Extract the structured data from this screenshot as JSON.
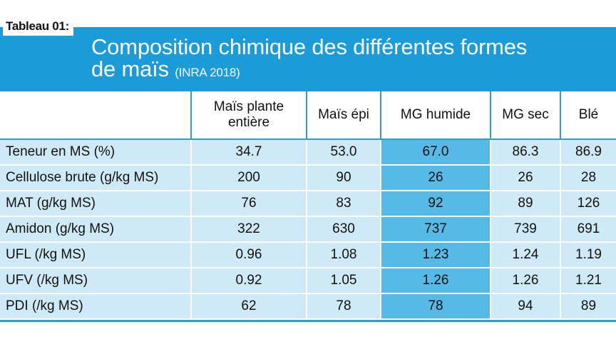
{
  "tag": "Tableau 01:",
  "title": {
    "line1": "Composition chimique des différentes formes",
    "line2": "de maïs",
    "source": "(INRA 2018)"
  },
  "table": {
    "headers": [
      "",
      "Maïs plante entière",
      "Maïs épi",
      "MG humide",
      "MG sec",
      "Blé"
    ],
    "highlight_column": 3,
    "rows": [
      [
        "Teneur en MS (%)",
        "34.7",
        "53.0",
        "67.0",
        "86.3",
        "86.9"
      ],
      [
        "Cellulose brute (g/kg MS)",
        "200",
        "90",
        "26",
        "26",
        "28"
      ],
      [
        "MAT (g/kg MS)",
        "76",
        "83",
        "92",
        "89",
        "126"
      ],
      [
        "Amidon (g/kg MS)",
        "322",
        "630",
        "737",
        "739",
        "691"
      ],
      [
        "UFL (/kg MS)",
        "0.96",
        "1.08",
        "1.23",
        "1.24",
        "1.19"
      ],
      [
        "UFV (/kg MS)",
        "0.92",
        "1.05",
        "1.26",
        "1.26",
        "1.21"
      ],
      [
        "PDI (/kg MS)",
        "62",
        "78",
        "78",
        "94",
        "89"
      ]
    ]
  },
  "colors": {
    "title_band": "#1b9bd8",
    "cell": "#cfeaf7",
    "highlight_cell": "#57b9e6",
    "rule": "#27a0da"
  }
}
